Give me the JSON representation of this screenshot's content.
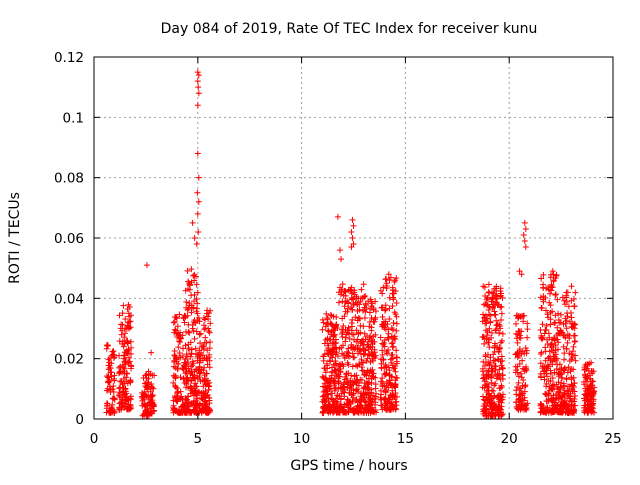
{
  "chart_data": {
    "type": "scatter",
    "title": "Day 084 of 2019, Rate Of TEC Index for receiver kunu",
    "xlabel": "GPS time / hours",
    "ylabel": "ROTI / TECUs",
    "xlim": [
      0,
      25
    ],
    "ylim": [
      0,
      0.12
    ],
    "xticks": [
      "0",
      "5",
      "10",
      "15",
      "20",
      "25"
    ],
    "yticks": [
      "0",
      "0.02",
      "0.04",
      "0.06",
      "0.08",
      "0.1",
      "0.12"
    ],
    "xtick_values": [
      0,
      5,
      10,
      15,
      20,
      25
    ],
    "ytick_values": [
      0,
      0.02,
      0.04,
      0.06,
      0.08,
      0.1,
      0.12
    ],
    "grid": true,
    "marker": "+",
    "color": "#ff0000",
    "series": [
      {
        "name": "ROTI",
        "clusters": [
          {
            "x_start": 0.6,
            "x_end": 1.0,
            "y_low": 0.002,
            "y_high": 0.025,
            "n": 70
          },
          {
            "x_start": 1.2,
            "x_end": 1.8,
            "y_low": 0.003,
            "y_high": 0.038,
            "n": 150
          },
          {
            "x_start": 2.3,
            "x_end": 2.9,
            "y_low": 0.001,
            "y_high": 0.016,
            "n": 90
          },
          {
            "x_start": 3.8,
            "x_end": 4.4,
            "y_low": 0.002,
            "y_high": 0.035,
            "n": 120
          },
          {
            "x_start": 4.4,
            "x_end": 5.0,
            "y_low": 0.002,
            "y_high": 0.05,
            "n": 180
          },
          {
            "x_start": 5.0,
            "x_end": 5.6,
            "y_low": 0.002,
            "y_high": 0.036,
            "n": 150
          },
          {
            "x_start": 11.0,
            "x_end": 11.8,
            "y_low": 0.002,
            "y_high": 0.035,
            "n": 220
          },
          {
            "x_start": 11.8,
            "x_end": 13.1,
            "y_low": 0.002,
            "y_high": 0.045,
            "n": 330
          },
          {
            "x_start": 13.1,
            "x_end": 13.6,
            "y_low": 0.002,
            "y_high": 0.04,
            "n": 130
          },
          {
            "x_start": 13.8,
            "x_end": 14.6,
            "y_low": 0.003,
            "y_high": 0.048,
            "n": 200
          },
          {
            "x_start": 18.7,
            "x_end": 19.7,
            "y_low": 0.001,
            "y_high": 0.045,
            "n": 300
          },
          {
            "x_start": 20.3,
            "x_end": 20.9,
            "y_low": 0.003,
            "y_high": 0.035,
            "n": 110
          },
          {
            "x_start": 21.5,
            "x_end": 22.3,
            "y_low": 0.002,
            "y_high": 0.048,
            "n": 200
          },
          {
            "x_start": 22.3,
            "x_end": 23.2,
            "y_low": 0.002,
            "y_high": 0.042,
            "n": 220
          },
          {
            "x_start": 23.6,
            "x_end": 24.1,
            "y_low": 0.002,
            "y_high": 0.019,
            "n": 120
          }
        ],
        "extra_points": [
          [
            2.55,
            0.051
          ],
          [
            2.75,
            0.022
          ],
          [
            4.75,
            0.065
          ],
          [
            4.85,
            0.06
          ],
          [
            4.95,
            0.058
          ],
          [
            5.0,
            0.115
          ],
          [
            5.05,
            0.114
          ],
          [
            5.0,
            0.112
          ],
          [
            5.02,
            0.11
          ],
          [
            5.05,
            0.108
          ],
          [
            5.0,
            0.104
          ],
          [
            5.0,
            0.088
          ],
          [
            5.05,
            0.08
          ],
          [
            4.98,
            0.075
          ],
          [
            5.05,
            0.072
          ],
          [
            5.0,
            0.068
          ],
          [
            5.02,
            0.062
          ],
          [
            5.45,
            0.036
          ],
          [
            5.35,
            0.033
          ],
          [
            5.5,
            0.03
          ],
          [
            11.75,
            0.067
          ],
          [
            11.85,
            0.056
          ],
          [
            11.9,
            0.053
          ],
          [
            12.45,
            0.066
          ],
          [
            12.5,
            0.064
          ],
          [
            12.4,
            0.062
          ],
          [
            12.45,
            0.06
          ],
          [
            12.5,
            0.058
          ],
          [
            12.4,
            0.057
          ],
          [
            14.2,
            0.048
          ],
          [
            14.1,
            0.045
          ],
          [
            20.5,
            0.049
          ],
          [
            20.6,
            0.048
          ],
          [
            20.75,
            0.065
          ],
          [
            20.8,
            0.063
          ],
          [
            20.7,
            0.061
          ],
          [
            20.75,
            0.059
          ],
          [
            20.8,
            0.057
          ],
          [
            22.1,
            0.049
          ],
          [
            22.0,
            0.047
          ],
          [
            22.15,
            0.046
          ],
          [
            23.0,
            0.044
          ]
        ]
      }
    ]
  }
}
